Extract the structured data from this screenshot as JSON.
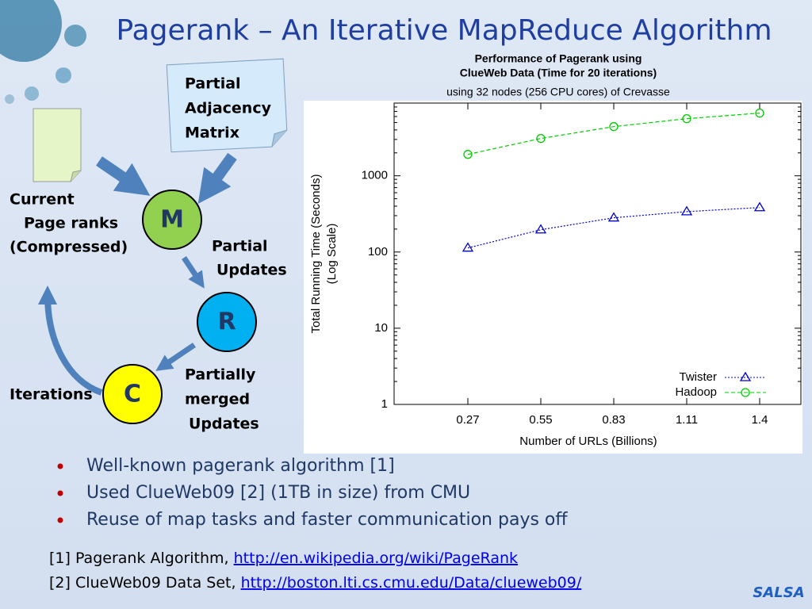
{
  "title": "Pagerank – An Iterative MapReduce Algorithm",
  "diagram": {
    "matrix_note": [
      "Partial",
      "Adjacency",
      "Matrix"
    ],
    "page_ranks": [
      "Current",
      "Page ranks",
      "(Compressed)"
    ],
    "map": "M",
    "reduce": "R",
    "combine": "C",
    "partial_updates": [
      "Partial",
      "Updates"
    ],
    "merged_updates": [
      "Partially",
      "merged",
      "Updates"
    ],
    "iterations": "Iterations"
  },
  "chart_data": {
    "type": "line",
    "title": [
      "Performance of Pagerank using",
      "ClueWeb Data (Time for 20 iterations)"
    ],
    "subtitle": "using 32 nodes (256 CPU cores) of Crevasse",
    "y_label": [
      "Total Running Time (Seconds)",
      "(Log Scale)"
    ],
    "x_label": "Number of URLs (Billions)",
    "categories": [
      "0.27",
      "0.55",
      "0.83",
      "1.11",
      "1.4"
    ],
    "series": [
      {
        "name": "Twister",
        "color": "#0000cc",
        "marker": "triangle",
        "values": [
          113,
          196,
          281,
          339,
          383
        ]
      },
      {
        "name": "Hadoop",
        "color": "#00cc00",
        "marker": "circle",
        "values": [
          1910,
          3090,
          4420,
          5620,
          6650
        ]
      }
    ],
    "ylim": [
      1,
      9000
    ],
    "yticks": [
      1,
      10,
      100,
      1000
    ],
    "log_y": true,
    "legend": "lower right"
  },
  "bullets": [
    "Well-known pagerank algorithm [1]",
    "Used ClueWeb09 [2] (1TB in size) from CMU",
    "Reuse of map tasks and faster communication pays off"
  ],
  "references": [
    {
      "text": "[1] Pagerank Algorithm, ",
      "link": "http://en.wikipedia.org/wiki/PageRank"
    },
    {
      "text": "[2] ClueWeb09 Data Set, ",
      "link": "http://boston.lti.cs.cmu.edu/Data/clueweb09/"
    }
  ],
  "logo": "SALSA"
}
